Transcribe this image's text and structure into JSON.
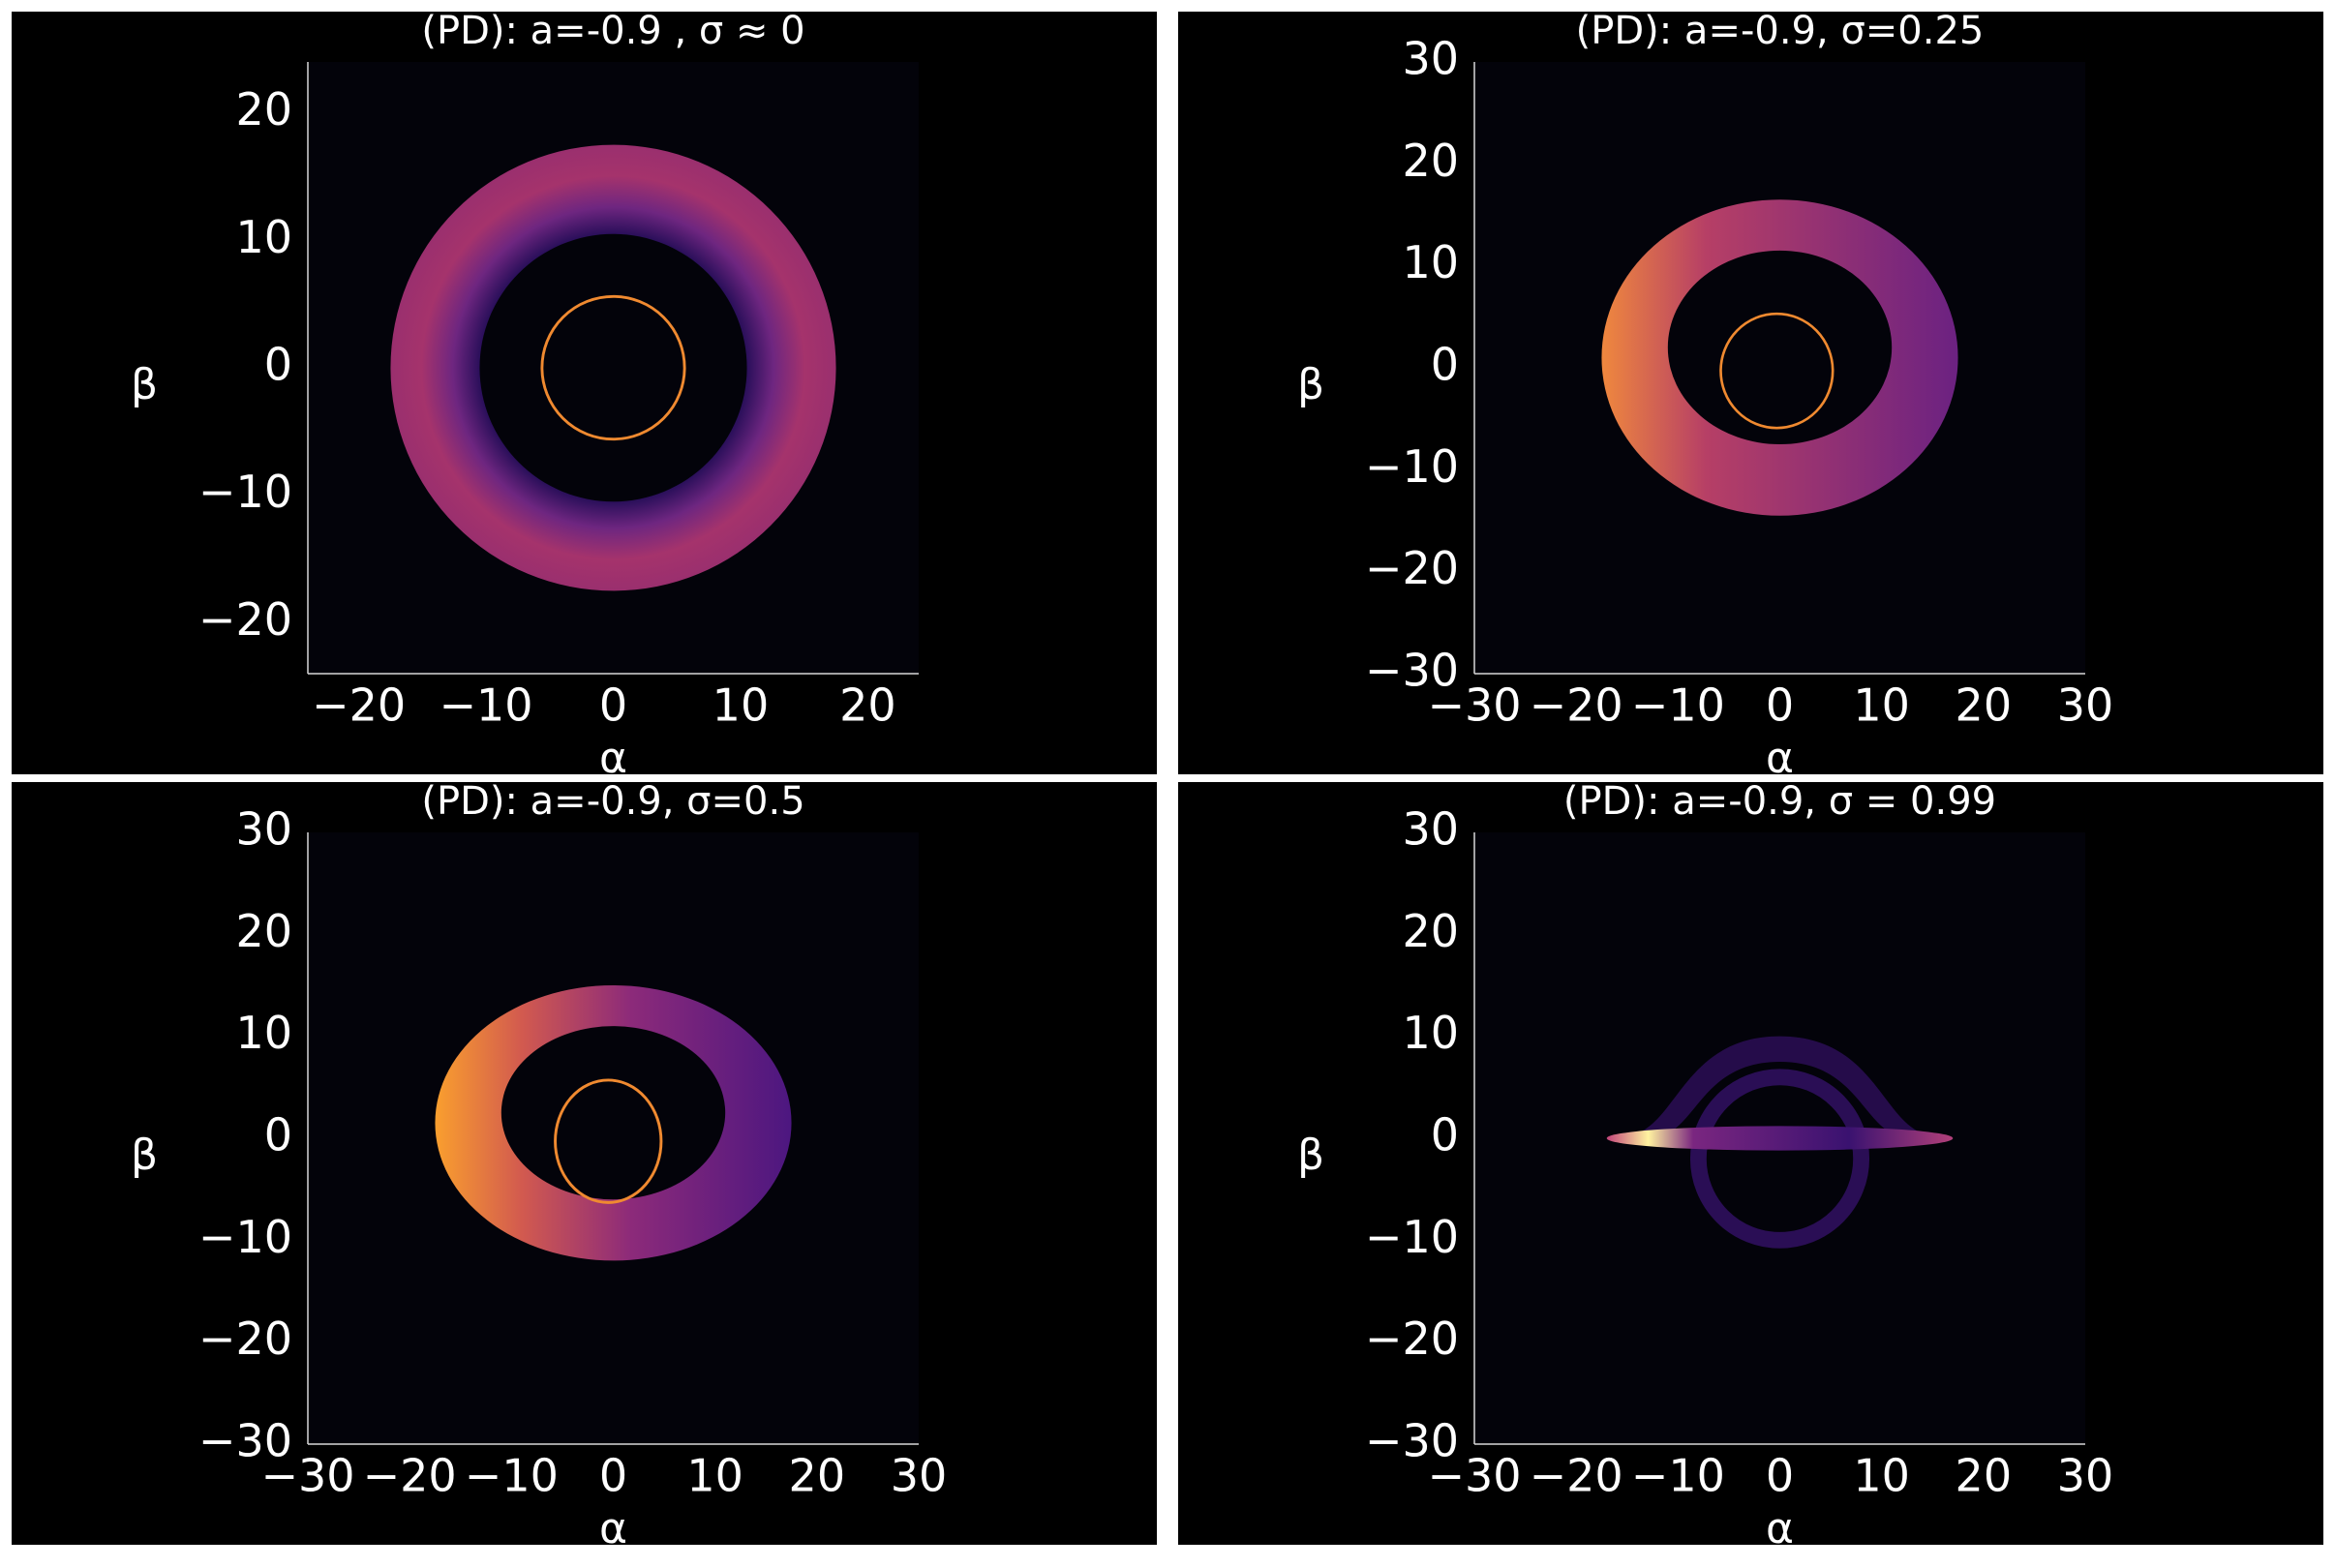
{
  "chart_data": [
    {
      "type": "image",
      "title": "(PD): a=-0.9 , σ ≈ 0",
      "x_label": "α",
      "y_label": "β",
      "xlim": [
        -24,
        24
      ],
      "ylim": [
        -24,
        24
      ],
      "xticks": [
        {
          "value": -20,
          "label": "−20"
        },
        {
          "value": -10,
          "label": "−10"
        },
        0,
        10,
        20
      ],
      "yticks": [
        {
          "value": -20,
          "label": "−20"
        },
        {
          "value": -10,
          "label": "−10"
        },
        0,
        10,
        20
      ]
    },
    {
      "type": "image",
      "title": "(PD): a=-0.9, σ=0.25",
      "x_label": "α",
      "y_label": "β",
      "xlim": [
        -30,
        30
      ],
      "ylim": [
        -30,
        30
      ],
      "xticks": [
        {
          "value": -30,
          "label": "−30"
        },
        {
          "value": -20,
          "label": "−20"
        },
        {
          "value": -10,
          "label": "−10"
        },
        0,
        10,
        20,
        30
      ],
      "yticks": [
        {
          "value": -30,
          "label": "−30"
        },
        {
          "value": -20,
          "label": "−20"
        },
        {
          "value": -10,
          "label": "−10"
        },
        0,
        10,
        20,
        30
      ]
    },
    {
      "type": "image",
      "title": "(PD): a=-0.9, σ=0.5",
      "x_label": "α",
      "y_label": "β",
      "xlim": [
        -30,
        30
      ],
      "ylim": [
        -30,
        30
      ],
      "xticks": [
        {
          "value": -30,
          "label": "−30"
        },
        {
          "value": -20,
          "label": "−20"
        },
        {
          "value": -10,
          "label": "−10"
        },
        0,
        10,
        20,
        30
      ],
      "yticks": [
        {
          "value": -30,
          "label": "−30"
        },
        {
          "value": -20,
          "label": "−20"
        },
        {
          "value": -10,
          "label": "−10"
        },
        0,
        10,
        20,
        30
      ]
    },
    {
      "type": "image",
      "title": "(PD): a=-0.9, σ = 0.99",
      "x_label": "α",
      "y_label": "β",
      "xlim": [
        -30,
        30
      ],
      "ylim": [
        -30,
        30
      ],
      "xticks": [
        {
          "value": -30,
          "label": "−30"
        },
        {
          "value": -20,
          "label": "−20"
        },
        {
          "value": -10,
          "label": "−10"
        },
        0,
        10,
        20,
        30
      ],
      "yticks": [
        {
          "value": -30,
          "label": "−30"
        },
        {
          "value": -20,
          "label": "−20"
        },
        {
          "value": -10,
          "label": "−10"
        },
        0,
        10,
        20,
        30
      ]
    }
  ]
}
